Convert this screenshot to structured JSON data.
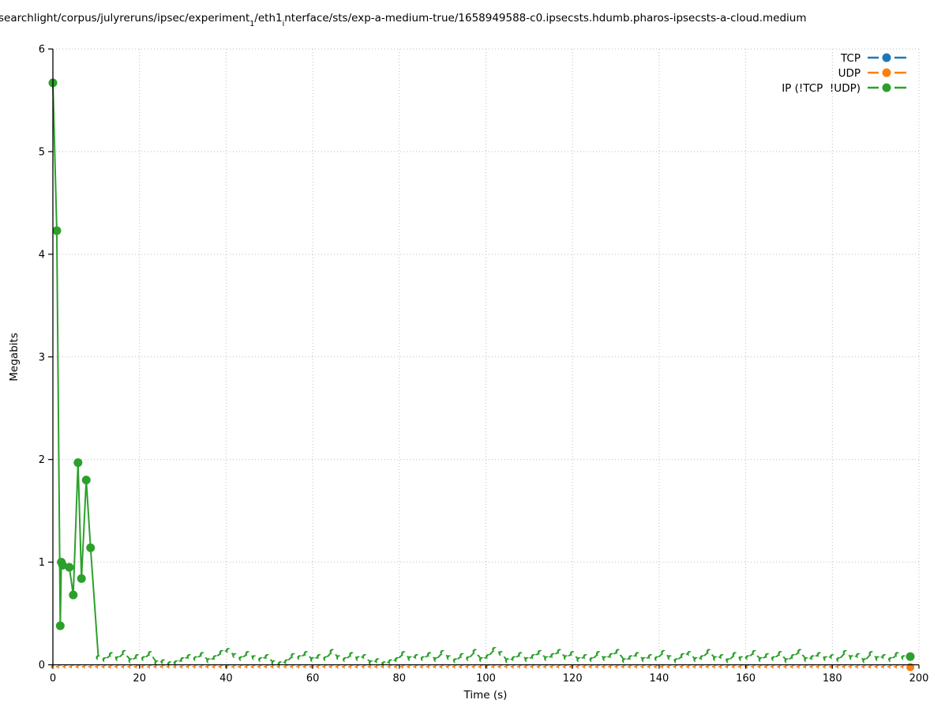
{
  "title_parts": {
    "p1": "searchlight/corpus/julyreruns/ipsec/experiment",
    "s1": "1",
    "p2": "/eth1",
    "s2": "i",
    "p3": "nterface/sts/exp-a-medium-true/1658949588-c0.ipsecsts.hdumb.pharos-ipsecsts-a-cloud.medium"
  },
  "chart_data": {
    "type": "line",
    "title": "searchlight/corpus/julyreruns/ipsec/experiment₁/eth1ᵢnterface/sts/exp-a-medium-true/1658949588-c0.ipsecsts.hdumb.pharos-ipsecsts-a-cloud.medium",
    "xlabel": "Time (s)",
    "ylabel": "Megabits",
    "xlim": [
      0,
      200
    ],
    "ylim": [
      0,
      6
    ],
    "xticks": [
      0,
      20,
      40,
      60,
      80,
      100,
      120,
      140,
      160,
      180,
      200
    ],
    "yticks": [
      0,
      1,
      2,
      3,
      4,
      5,
      6
    ],
    "grid": true,
    "grid_style": "dotted",
    "legend_position": "upper right",
    "series": [
      {
        "name": "TCP",
        "color": "#1f77b4",
        "type": "constant",
        "x_start": 0,
        "x_end": 196.5,
        "x_step": 1.5,
        "value": 0,
        "final_point": {
          "x": 198,
          "y": 0
        }
      },
      {
        "name": "UDP",
        "color": "#ff7f0e",
        "type": "constant",
        "x_start": 0,
        "x_end": 196.5,
        "x_step": 1.5,
        "value": 0,
        "final_point": {
          "x": 198,
          "y": 0
        }
      },
      {
        "name": "IP (!TCP  !UDP)",
        "color": "#2ca02c",
        "type": "points",
        "spike_points": [
          [
            0,
            5.67
          ],
          [
            0.9,
            4.23
          ],
          [
            1.7,
            0.38
          ],
          [
            1.95,
            1.0
          ],
          [
            2.25,
            0.97
          ],
          [
            3.8,
            0.95
          ],
          [
            4.7,
            0.68
          ],
          [
            5.8,
            1.97
          ],
          [
            6.6,
            0.84
          ],
          [
            7.7,
            1.8
          ],
          [
            8.7,
            1.14
          ]
        ],
        "noise": {
          "x_start": 10.5,
          "x_step": 1.5,
          "values": [
            0.07,
            0.05,
            0.1,
            0.06,
            0.12,
            0.04,
            0.08,
            0.06,
            0.11,
            0.02,
            0.03,
            0.01,
            0.02,
            0.05,
            0.08,
            0.06,
            0.1,
            0.04,
            0.07,
            0.12,
            0.14,
            0.09,
            0.06,
            0.11,
            0.07,
            0.05,
            0.08,
            0.02,
            0.01,
            0.03,
            0.09,
            0.07,
            0.11,
            0.05,
            0.08,
            0.06,
            0.13,
            0.07,
            0.05,
            0.1,
            0.06,
            0.08,
            0.02,
            0.04,
            0.01,
            0.03,
            0.05,
            0.11,
            0.06,
            0.08,
            0.06,
            0.1,
            0.05,
            0.12,
            0.07,
            0.04,
            0.09,
            0.06,
            0.13,
            0.05,
            0.08,
            0.15,
            0.11,
            0.04,
            0.06,
            0.1,
            0.05,
            0.08,
            0.12,
            0.06,
            0.09,
            0.13,
            0.07,
            0.11,
            0.05,
            0.08,
            0.05,
            0.11,
            0.06,
            0.09,
            0.13,
            0.04,
            0.07,
            0.1,
            0.05,
            0.08,
            0.06,
            0.12,
            0.07,
            0.04,
            0.09,
            0.11,
            0.05,
            0.07,
            0.13,
            0.06,
            0.08,
            0.04,
            0.1,
            0.06,
            0.07,
            0.12,
            0.05,
            0.09,
            0.06,
            0.11,
            0.04,
            0.08,
            0.13,
            0.05,
            0.07,
            0.1,
            0.06,
            0.08,
            0.05,
            0.12,
            0.07,
            0.09,
            0.04,
            0.11,
            0.06,
            0.08,
            0.05,
            0.1,
            0.07
          ]
        },
        "final_point": {
          "x": 198,
          "y": 0.08
        }
      }
    ]
  }
}
